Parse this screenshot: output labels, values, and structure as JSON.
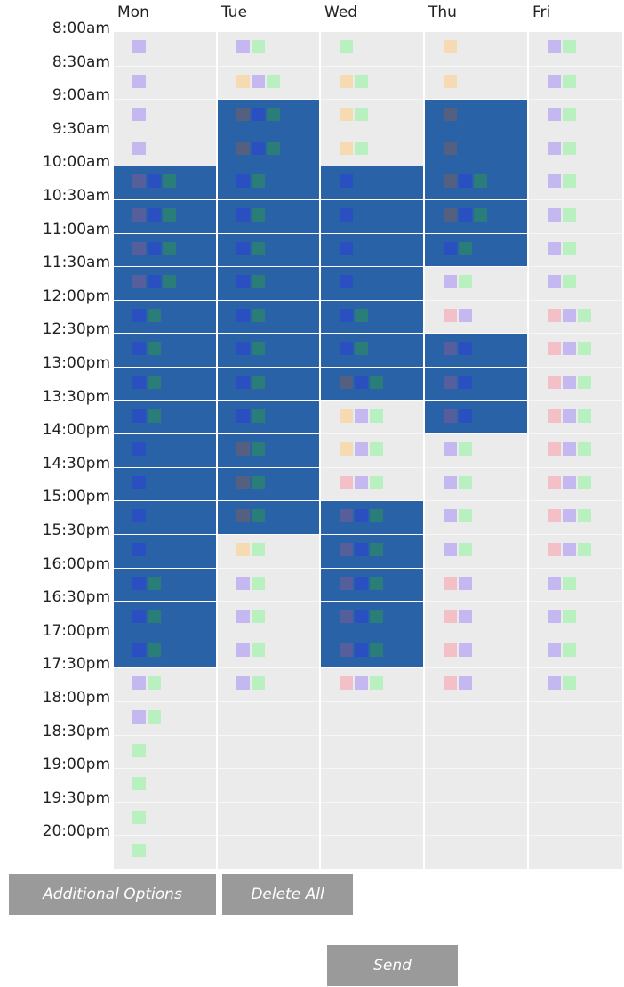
{
  "days": [
    "Mon",
    "Tue",
    "Wed",
    "Thu",
    "Fri"
  ],
  "times": [
    "8:00am",
    "8:30am",
    "9:00am",
    "9:30am",
    "10:00am",
    "10:30am",
    "11:00am",
    "11:30am",
    "12:00pm",
    "12:30pm",
    "13:00pm",
    "13:30pm",
    "14:00pm",
    "14:30pm",
    "15:00pm",
    "15:30pm",
    "16:00pm",
    "16:30pm",
    "17:00pm",
    "17:30pm",
    "18:00pm",
    "18:30pm",
    "19:00pm",
    "19:30pm",
    "20:00pm"
  ],
  "selected": [
    [
      4,
      5,
      6,
      7,
      8,
      9,
      10,
      11,
      12,
      13,
      14,
      15,
      16,
      17,
      18
    ],
    [
      2,
      3,
      4,
      5,
      6,
      7,
      8,
      9,
      10,
      11,
      12,
      13,
      14
    ],
    [
      4,
      5,
      6,
      7,
      8,
      9,
      10,
      14,
      15,
      16,
      17,
      18
    ],
    [
      2,
      3,
      4,
      5,
      6,
      9,
      10,
      11
    ],
    []
  ],
  "availability": [
    [
      "p",
      "p",
      "p",
      "p",
      "mbt",
      "mbt",
      "mbt",
      "mbt",
      "bt",
      "bt",
      "bt",
      "bt",
      "b",
      "b",
      "b",
      "b",
      "bt",
      "bt",
      "bt",
      "pg",
      "pg",
      "g",
      "g",
      "g",
      "g"
    ],
    [
      "pg",
      "opg",
      "sbt",
      "sbt",
      "bt",
      "bt",
      "bt",
      "bt",
      "bt",
      "bt",
      "bt",
      "bt",
      "st",
      "st",
      "st",
      "og",
      "pg",
      "pg",
      "pg",
      "pg",
      "",
      "",
      "",
      "",
      ""
    ],
    [
      "g",
      "og",
      "og",
      "og",
      "b",
      "b",
      "b",
      "b",
      "bt",
      "bt",
      "sbt",
      "opg",
      "opg",
      "rpg",
      "mbt",
      "mbt",
      "mbt",
      "mbt",
      "mbt",
      "rpg",
      "",
      "",
      "",
      "",
      ""
    ],
    [
      "o",
      "o",
      "s",
      "s",
      "sbt",
      "sbt",
      "bt",
      "pg",
      "rp",
      "mb",
      "mb",
      "mb",
      "pg",
      "pg",
      "pg",
      "pg",
      "rp",
      "rp",
      "rp",
      "rp",
      "",
      "",
      "",
      "",
      ""
    ],
    [
      "pg",
      "pg",
      "pg",
      "pg",
      "pg",
      "pg",
      "pg",
      "pg",
      "rpg",
      "rpg",
      "rpg",
      "rpg",
      "rpg",
      "rpg",
      "rpg",
      "rpg",
      "pg",
      "pg",
      "pg",
      "pg",
      "",
      "",
      "",
      "",
      ""
    ]
  ],
  "buttons": {
    "additional_options": "Additional Options",
    "delete_all": "Delete All",
    "send": "Send"
  }
}
